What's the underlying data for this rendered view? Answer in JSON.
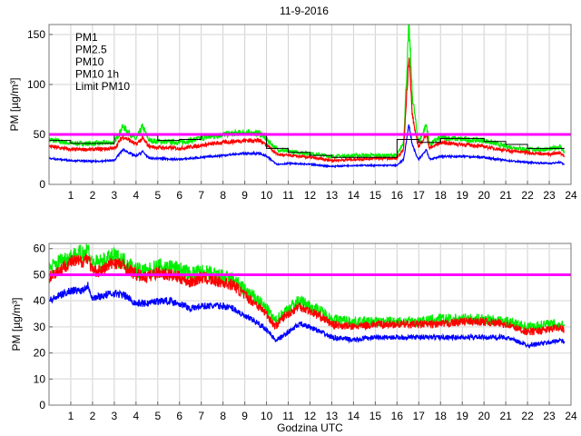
{
  "title": "11-9-2016",
  "colors": {
    "PM1": "#0000ff",
    "PM2.5": "#ff0000",
    "PM10": "#00ee00",
    "PM10 1h": "#000000",
    "Limit PM10": "#ff00ff"
  },
  "chart_data": [
    {
      "type": "line",
      "ylabel": "PM [µg/m³]",
      "xlabel": "",
      "xlim": [
        0,
        24
      ],
      "ylim": [
        0,
        160
      ],
      "yticks": [
        0,
        50,
        100,
        150
      ],
      "xticks": [
        1,
        2,
        3,
        4,
        5,
        6,
        7,
        8,
        9,
        10,
        11,
        12,
        13,
        14,
        15,
        16,
        17,
        18,
        19,
        20,
        21,
        22,
        23,
        24
      ],
      "grid": true,
      "legend": {
        "placement": "top-left",
        "entries": [
          "PM1",
          "PM2.5",
          "PM10",
          "PM10 1h",
          "Limit PM10"
        ]
      },
      "limit": 50,
      "x": [
        0,
        1,
        2,
        3,
        3.4,
        4,
        4.3,
        4.6,
        5,
        6,
        7,
        8,
        9,
        9.7,
        10,
        10.5,
        11,
        12,
        13,
        14,
        15,
        16,
        16.3,
        16.55,
        16.7,
        16.9,
        17,
        17.35,
        17.5,
        18,
        19,
        20,
        21,
        22,
        23,
        23.5,
        23.7
      ],
      "series": [
        {
          "name": "PM1",
          "values": [
            26,
            24,
            23,
            24,
            35,
            28,
            33,
            26,
            26,
            25,
            27,
            29,
            31,
            31,
            28,
            20,
            21,
            20,
            18,
            19,
            19,
            19,
            25,
            60,
            40,
            28,
            25,
            35,
            25,
            28,
            28,
            27,
            24,
            22,
            21,
            22,
            20
          ]
        },
        {
          "name": "PM2.5",
          "values": [
            38,
            35,
            35,
            36,
            48,
            40,
            46,
            38,
            37,
            36,
            39,
            42,
            44,
            44,
            40,
            30,
            29,
            27,
            24,
            25,
            26,
            26,
            35,
            130,
            70,
            45,
            38,
            50,
            36,
            42,
            40,
            38,
            34,
            32,
            30,
            32,
            28
          ]
        },
        {
          "name": "PM10",
          "values": [
            45,
            41,
            41,
            42,
            58,
            45,
            58,
            44,
            43,
            42,
            46,
            50,
            52,
            51,
            45,
            35,
            33,
            31,
            28,
            29,
            29,
            29,
            42,
            160,
            90,
            55,
            42,
            60,
            40,
            47,
            45,
            44,
            38,
            35,
            35,
            38,
            32
          ]
        }
      ],
      "hourly": {
        "name": "PM10 1h",
        "hours": [
          0,
          1,
          2,
          3,
          4,
          5,
          6,
          7,
          8,
          9,
          10,
          11,
          12,
          13,
          14,
          15,
          16,
          17,
          18,
          19,
          20,
          21,
          22,
          23
        ],
        "values": [
          44,
          41,
          41,
          49,
          49,
          44,
          45,
          49,
          51,
          51,
          36,
          32,
          29,
          27,
          27,
          27,
          45,
          42,
          46,
          46,
          43,
          40,
          36,
          36
        ]
      }
    },
    {
      "type": "line",
      "ylabel": "PM [µg/m³]",
      "xlabel": "Godzina UTC",
      "xlim": [
        0,
        24
      ],
      "ylim": [
        0,
        62
      ],
      "yticks": [
        0,
        10,
        20,
        30,
        40,
        50,
        60
      ],
      "xticks": [
        1,
        2,
        3,
        4,
        5,
        6,
        7,
        8,
        9,
        10,
        11,
        12,
        13,
        14,
        15,
        16,
        17,
        18,
        19,
        20,
        21,
        22,
        23,
        24
      ],
      "grid": true,
      "limit": 50,
      "x": [
        0,
        0.5,
        1,
        1.5,
        1.8,
        2,
        2.5,
        3,
        3.5,
        4,
        4.5,
        5,
        5.5,
        6,
        6.5,
        7,
        7.5,
        8,
        8.5,
        9,
        9.5,
        10,
        10.4,
        10.7,
        11,
        11.5,
        12,
        12.5,
        13,
        14,
        15,
        16,
        17,
        18,
        19,
        20,
        21,
        22,
        23,
        23.5,
        23.7
      ],
      "series": [
        {
          "name": "PM1",
          "values": [
            40,
            42,
            44,
            44,
            46,
            41,
            42,
            43,
            42,
            39,
            39,
            40,
            40,
            39,
            37,
            38,
            38,
            38,
            37,
            34,
            32,
            29,
            25,
            26,
            28,
            31,
            30,
            28,
            26,
            25,
            26,
            26,
            26,
            26,
            26,
            26,
            26,
            23,
            24,
            25,
            24
          ]
        },
        {
          "name": "PM2.5",
          "values": [
            49,
            52,
            55,
            55,
            57,
            51,
            52,
            55,
            53,
            50,
            49,
            51,
            50,
            49,
            47,
            49,
            48,
            47,
            46,
            42,
            39,
            35,
            30,
            33,
            35,
            38,
            36,
            34,
            31,
            30,
            31,
            31,
            31,
            31,
            32,
            32,
            31,
            28,
            29,
            30,
            29
          ]
        },
        {
          "name": "PM10",
          "values": [
            52,
            55,
            57,
            58,
            60,
            54,
            55,
            57,
            55,
            52,
            51,
            53,
            53,
            52,
            50,
            51,
            50,
            49,
            48,
            44,
            41,
            37,
            32,
            35,
            37,
            40,
            38,
            36,
            33,
            32,
            32,
            32,
            32,
            33,
            33,
            33,
            32,
            30,
            31,
            31,
            30
          ]
        }
      ]
    }
  ]
}
